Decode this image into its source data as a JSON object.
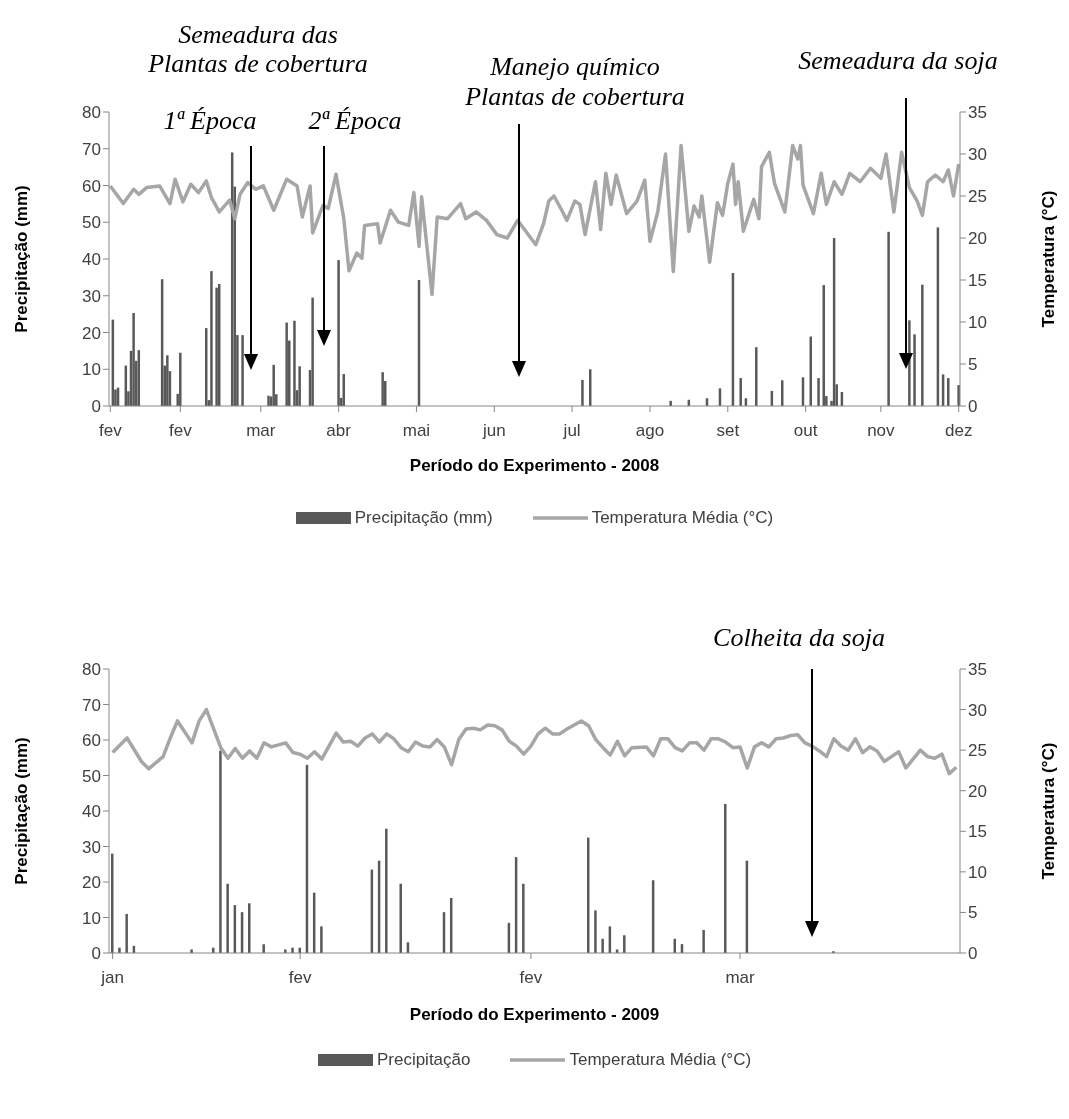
{
  "chart_data": [
    {
      "type": "bar",
      "xlabel": "Período do Experimento - 2008",
      "ylabel": "Precipitação (mm)",
      "y2label": "Temperatura (°C)",
      "categories": [
        "fev",
        null,
        null,
        null,
        null,
        null,
        null,
        null,
        null,
        null,
        null,
        null,
        null,
        null,
        null,
        null,
        null,
        null,
        null,
        null,
        null,
        null,
        null,
        null,
        null,
        null,
        null,
        "fev",
        null,
        null,
        null,
        null,
        null,
        null,
        null,
        null,
        null,
        null,
        null,
        null,
        null,
        null,
        null,
        null,
        null,
        null,
        null,
        null,
        null,
        null,
        null,
        null,
        null,
        null,
        null,
        null,
        null,
        null,
        "mar",
        null,
        null,
        null,
        null,
        null,
        null,
        null,
        null,
        null,
        null,
        null,
        null,
        null,
        null,
        null,
        null,
        null,
        null,
        null,
        null,
        null,
        null,
        null,
        null,
        null,
        null,
        null,
        null,
        null,
        "abr",
        null,
        null,
        null,
        null,
        null,
        null,
        null,
        null,
        null,
        null,
        null,
        null,
        null,
        null,
        null,
        null,
        null,
        null,
        null,
        null,
        null,
        null,
        null,
        null,
        null,
        null,
        null,
        null,
        null,
        "mai",
        null,
        null,
        null,
        null,
        null,
        null,
        null,
        null,
        null,
        null,
        null,
        null,
        null,
        null,
        null,
        null,
        null,
        null,
        null,
        null,
        null,
        null,
        null,
        null,
        null,
        null,
        null,
        null,
        null,
        "jun",
        null,
        null,
        null,
        null,
        null,
        null,
        null,
        null,
        null,
        null,
        null,
        null,
        null,
        null,
        null,
        null,
        null,
        null,
        null,
        null,
        null,
        null,
        null,
        null,
        null,
        null,
        null,
        null,
        null,
        "jul",
        null,
        null,
        null,
        null,
        null,
        null,
        null,
        null,
        null,
        null,
        null,
        null,
        null,
        null,
        null,
        null,
        null,
        null,
        null,
        null,
        null,
        null,
        null,
        null,
        null,
        null,
        null,
        null,
        null,
        "ago",
        null,
        null,
        null,
        null,
        null,
        null,
        null,
        null,
        null,
        null,
        null,
        null,
        null,
        null,
        null,
        null,
        null,
        null,
        null,
        null,
        null,
        null,
        null,
        null,
        null,
        null,
        null,
        null,
        null,
        "set",
        null,
        null,
        null,
        null,
        null,
        null,
        null,
        null,
        null,
        null,
        null,
        null,
        null,
        null,
        null,
        null,
        null,
        null,
        null,
        null,
        null,
        null,
        null,
        null,
        null,
        null,
        null,
        null,
        null,
        "out",
        null,
        null,
        null,
        null,
        null,
        null,
        null,
        null,
        null,
        null,
        null,
        null,
        null,
        null,
        null,
        null,
        null,
        null,
        null,
        null,
        null,
        null,
        null,
        null,
        null,
        null,
        null,
        null,
        "nov",
        null,
        null,
        null,
        null,
        null,
        null,
        null,
        null,
        null,
        null,
        null,
        null,
        null,
        null,
        null,
        null,
        null,
        null,
        null,
        null,
        null,
        null,
        null,
        null,
        null,
        null,
        null,
        null,
        null,
        "dez"
      ],
      "ylim": [
        0,
        80
      ],
      "yticks": [
        0,
        10,
        20,
        30,
        40,
        50,
        60,
        70,
        80
      ],
      "y2lim": [
        0,
        35
      ],
      "y2ticks": [
        0,
        5,
        10,
        15,
        20,
        25,
        30,
        35
      ],
      "legend": "bottom",
      "annotations": [
        "Semeadura das\nPlantas de cobertura",
        "1ª Época",
        "2ª Época",
        "Manejo químico\nPlantas de cobertura",
        "Semeadura da soja"
      ],
      "series": [
        {
          "name": "Precipitação (mm)",
          "color": "#595959",
          "values": [
            null,
            23.5,
            4.5,
            5,
            null,
            null,
            11,
            4,
            15,
            25.3,
            12.3,
            15.2,
            null,
            null,
            null,
            null,
            null,
            null,
            null,
            null,
            34.5,
            11,
            13.8,
            9.5,
            null,
            null,
            3.3,
            14.5,
            null,
            null,
            null,
            null,
            null,
            null,
            null,
            null,
            null,
            21.2,
            1.6,
            36.7,
            null,
            32.2,
            33.2,
            null,
            null,
            null,
            null,
            69,
            59.7,
            19.3,
            null,
            19.3,
            null,
            null,
            null,
            null,
            null,
            null,
            null,
            null,
            null,
            2.8,
            2.6,
            11.2,
            3.2,
            null,
            null,
            null,
            22.7,
            17.8,
            null,
            23.2,
            4.3,
            10.8,
            null,
            null,
            null,
            9.8,
            29.5,
            null,
            null,
            null,
            null,
            null,
            null,
            null,
            null,
            null,
            39.7,
            2.2,
            8.7,
            null,
            null,
            null,
            null,
            null,
            null,
            null,
            null,
            null,
            null,
            null,
            null,
            null,
            null,
            9.2,
            6.8,
            null,
            null,
            null,
            null,
            null,
            null,
            null,
            null,
            null,
            null,
            null,
            null,
            34.3,
            null,
            null,
            null,
            null,
            null,
            null,
            null,
            null,
            null,
            null,
            null,
            null,
            null,
            null,
            null,
            null,
            null,
            null,
            null,
            null,
            null,
            null,
            null,
            null,
            null,
            null,
            null,
            null,
            null,
            null,
            null,
            null,
            null,
            null,
            null,
            null,
            null,
            null,
            null,
            null,
            null,
            null,
            null,
            null,
            null,
            null,
            null,
            null,
            null,
            null,
            null,
            null,
            null,
            null,
            null,
            null,
            null,
            null,
            null,
            null,
            null,
            null,
            7.1,
            null,
            null,
            10,
            null,
            null,
            null,
            null,
            null,
            null,
            null,
            null,
            null,
            null,
            null,
            null,
            null,
            null,
            null,
            null,
            null,
            null,
            null,
            null,
            null,
            null,
            null,
            null,
            null,
            null,
            null,
            null,
            null,
            null,
            1.4,
            null,
            null,
            null,
            null,
            null,
            null,
            1.7,
            null,
            null,
            null,
            null,
            null,
            null,
            2.1,
            null,
            null,
            null,
            null,
            4.8,
            null,
            null,
            null,
            null,
            36.2,
            null,
            null,
            7.6,
            null,
            2.1,
            null,
            null,
            null,
            16,
            null,
            null,
            null,
            null,
            null,
            4.1,
            null,
            null,
            null,
            7,
            null,
            null,
            null,
            null,
            null,
            null,
            null,
            7.8,
            null,
            null,
            18.9,
            null,
            null,
            7.6,
            null,
            32.9,
            2.7,
            null,
            1.4,
            45.7,
            5.9,
            null,
            3.8,
            null,
            null,
            null,
            null,
            null,
            null,
            null,
            null,
            null,
            null,
            null,
            null,
            null,
            null,
            null,
            null,
            null,
            47.4,
            null,
            null,
            null,
            null,
            null,
            null,
            null,
            23.3,
            null,
            19.5,
            null,
            null,
            33,
            null,
            null,
            null,
            null,
            null,
            48.6,
            null,
            8.6,
            null,
            7.6,
            null,
            null,
            null,
            5.7
          ]
        },
        {
          "name": "Temperatura Média (°C)",
          "type": "line",
          "axis": "y2",
          "color": "#a6a6a6",
          "values": [
            26.2,
            null,
            null,
            null,
            null,
            24.1,
            null,
            null,
            null,
            25.8,
            null,
            25.2,
            null,
            null,
            26,
            null,
            null,
            null,
            null,
            26.2,
            null,
            null,
            null,
            24.1,
            null,
            27,
            null,
            null,
            24.3,
            null,
            null,
            26.4,
            null,
            null,
            25.4,
            null,
            null,
            26.8,
            null,
            24.8,
            null,
            null,
            23.1,
            null,
            null,
            null,
            24.5,
            null,
            22.3,
            null,
            25.2,
            null,
            null,
            26.6,
            null,
            null,
            25.8,
            null,
            null,
            26.2,
            null,
            null,
            null,
            23.3,
            null,
            null,
            null,
            null,
            27,
            null,
            null,
            null,
            26.2,
            null,
            22.5,
            null,
            null,
            26.2,
            20.6,
            null,
            null,
            null,
            23.9,
            null,
            23.5,
            null,
            null,
            27.6,
            null,
            null,
            22.3,
            null,
            16.1,
            null,
            null,
            18.2,
            null,
            17.6,
            21.5,
            null,
            null,
            null,
            null,
            21.7,
            19.4,
            null,
            null,
            null,
            23.3,
            null,
            null,
            21.9,
            null,
            null,
            null,
            21.5,
            null,
            25.4,
            null,
            19,
            24.9,
            null,
            null,
            null,
            13.3,
            null,
            22.5,
            null,
            null,
            null,
            22.3,
            null,
            null,
            null,
            null,
            24.1,
            null,
            22.3,
            null,
            null,
            null,
            23.1,
            null,
            null,
            null,
            22.1,
            null,
            null,
            null,
            20.4,
            null,
            null,
            null,
            20,
            null,
            null,
            null,
            22.1,
            21.7,
            null,
            null,
            null,
            null,
            null,
            19.2,
            null,
            null,
            21.7,
            null,
            24.4,
            null,
            25,
            null,
            null,
            23.3,
            null,
            22.1,
            null,
            null,
            24.4,
            null,
            24,
            null,
            20.4,
            null,
            null,
            null,
            26.7,
            null,
            21,
            null,
            27.7,
            null,
            24,
            null,
            27.5,
            null,
            null,
            null,
            22.9,
            null,
            null,
            null,
            24.4,
            null,
            null,
            26.9,
            null,
            19.6,
            null,
            null,
            23.1,
            null,
            null,
            30,
            null,
            null,
            16,
            null,
            null,
            31,
            null,
            null,
            20.8,
            null,
            23.8,
            null,
            22.5,
            25,
            null,
            null,
            17.1,
            null,
            null,
            24.2,
            null,
            22.7,
            null,
            26.5,
            null,
            28.8,
            24,
            26.7,
            null,
            20.8,
            null,
            null,
            null,
            24.6,
            null,
            22.3,
            28.5,
            null,
            null,
            30.2,
            null,
            26.5,
            null,
            null,
            null,
            23.1,
            null,
            null,
            31,
            null,
            29.4,
            31,
            26.3,
            null,
            null,
            null,
            22.9,
            null,
            null,
            27.7,
            null,
            24,
            null,
            null,
            26.7,
            null,
            null,
            25.2,
            null,
            null,
            27.7,
            null,
            null,
            null,
            26.7,
            null,
            null,
            null,
            28.3,
            null,
            null,
            null,
            27.1,
            null,
            30,
            null,
            null,
            23.1,
            null,
            null,
            30.2,
            null,
            null,
            26,
            null,
            null,
            24.4,
            null,
            22.7,
            null,
            26.7,
            null,
            null,
            27.5,
            null,
            null,
            26.7,
            null,
            28.1,
            null,
            25,
            null,
            28.8
          ]
        }
      ]
    },
    {
      "type": "bar",
      "xlabel": "Período do Experimento - 2009",
      "ylabel": "Precipitação (mm)",
      "y2label": "Temperatura (°C)",
      "categories": [
        "jan",
        null,
        null,
        null,
        null,
        null,
        null,
        null,
        null,
        null,
        null,
        null,
        null,
        null,
        null,
        null,
        null,
        null,
        null,
        null,
        null,
        null,
        null,
        null,
        null,
        null,
        "fev",
        null,
        null,
        null,
        null,
        null,
        null,
        null,
        null,
        null,
        null,
        null,
        null,
        null,
        null,
        null,
        null,
        null,
        null,
        null,
        null,
        null,
        null,
        null,
        null,
        null,
        null,
        null,
        null,
        null,
        null,
        null,
        "fev",
        null,
        null,
        null,
        null,
        null,
        null,
        null,
        null,
        null,
        null,
        null,
        null,
        null,
        null,
        null,
        null,
        null,
        null,
        null,
        null,
        null,
        null,
        null,
        null,
        null,
        null,
        null,
        null,
        "mar",
        null,
        null,
        null,
        null,
        null,
        null,
        null,
        null,
        null,
        null,
        null,
        null,
        null,
        null,
        null,
        null,
        null,
        null,
        null,
        null,
        null,
        null,
        null,
        null,
        null,
        null,
        null,
        null,
        null,
        null
      ],
      "ylim": [
        0,
        80
      ],
      "yticks": [
        0,
        10,
        20,
        30,
        40,
        50,
        60,
        70,
        80
      ],
      "y2lim": [
        0,
        35
      ],
      "y2ticks": [
        0,
        5,
        10,
        15,
        20,
        25,
        30,
        35
      ],
      "legend": "bottom",
      "annotations": [
        "Colheita da soja"
      ],
      "series": [
        {
          "name": "Precipitação",
          "color": "#595959",
          "values": [
            28,
            1.5,
            11,
            2,
            null,
            null,
            null,
            null,
            null,
            null,
            null,
            1,
            null,
            null,
            1.5,
            57,
            19.5,
            13.5,
            11.5,
            14,
            null,
            2.5,
            null,
            null,
            1,
            1.5,
            1.5,
            53,
            17,
            7.5,
            null,
            null,
            null,
            null,
            null,
            null,
            23.5,
            26,
            35,
            null,
            19.5,
            3,
            null,
            null,
            null,
            null,
            11.5,
            15.5,
            null,
            null,
            null,
            null,
            null,
            null,
            null,
            8.5,
            27,
            19.5,
            null,
            null,
            null,
            null,
            null,
            null,
            null,
            null,
            32.5,
            12,
            4,
            7.5,
            1,
            5,
            null,
            null,
            null,
            20.5,
            null,
            null,
            4,
            2.5,
            null,
            null,
            6.5,
            null,
            null,
            42,
            null,
            null,
            26,
            null,
            null,
            null,
            null,
            null,
            null,
            null,
            null,
            null,
            null,
            null,
            0.5,
            null,
            null,
            null,
            null,
            null,
            null,
            null,
            null,
            null,
            null,
            null,
            null,
            null,
            null,
            null,
            null,
            null
          ]
        },
        {
          "name": "Temperatura Média (°C)",
          "type": "line",
          "axis": "y2",
          "color": "#a6a6a6",
          "values": [
            24.7,
            null,
            26.5,
            null,
            23.6,
            22.7,
            null,
            24.2,
            26.5,
            28.6,
            null,
            25.9,
            28.6,
            30,
            null,
            25.3,
            24,
            25.2,
            24,
            24.9,
            24,
            25.9,
            25.4,
            null,
            25.9,
            24.7,
            24.5,
            24,
            24.8,
            23.9,
            null,
            27.1,
            26,
            26.1,
            25.5,
            26.5,
            27,
            26,
            27,
            26.4,
            25.3,
            24.8,
            26,
            25.5,
            25.4,
            26.3,
            25.4,
            23.2,
            26.3,
            27.6,
            27.7,
            27.5,
            28.1,
            28,
            27.5,
            26.1,
            25.5,
            24.5,
            25.5,
            27,
            27.7,
            27,
            27,
            27.6,
            null,
            28.6,
            28,
            26.3,
            25.3,
            24.4,
            26.1,
            24.3,
            25.3,
            null,
            25.4,
            24.3,
            26.4,
            26.4,
            25.3,
            24.9,
            25.9,
            25.9,
            25,
            26.4,
            26.4,
            26,
            25.3,
            25.4,
            22.8,
            25.4,
            25.9,
            25.4,
            26.4,
            26.5,
            26.8,
            26.9,
            25.9,
            25.5,
            24.9,
            24.2,
            26.4,
            25.5,
            25,
            26.4,
            24.7,
            25.4,
            24.9,
            23.6,
            24.2,
            24.8,
            22.8,
            null,
            25,
            24.2,
            24,
            24.5,
            22.1,
            22.9
          ]
        }
      ]
    }
  ]
}
